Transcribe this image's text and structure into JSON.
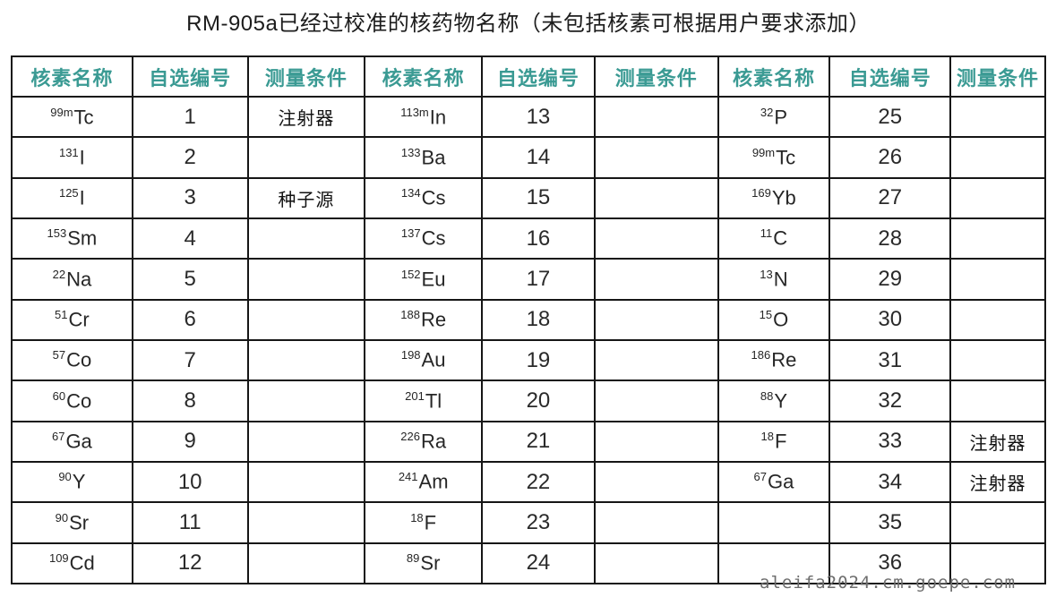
{
  "title": "RM-905a已经过校准的核药物名称（未包括核素可根据用户要求添加）",
  "watermark": "aleifa2024.cm.goepe.com",
  "colors": {
    "header_text": "#3a9a93",
    "border": "#161616",
    "body_text": "#262626",
    "watermark_text": "#6e6e6e",
    "background": "#ffffff"
  },
  "table": {
    "headers": [
      "核素名称",
      "自选编号",
      "测量条件",
      "核素名称",
      "自选编号",
      "测量条件",
      "核素名称",
      "自选编号",
      "测量条件"
    ],
    "rows": [
      [
        {
          "mass": "99m",
          "el": "Tc"
        },
        "1",
        "注射器",
        {
          "mass": "113m",
          "el": "In"
        },
        "13",
        "",
        {
          "mass": "32",
          "el": "P"
        },
        "25",
        ""
      ],
      [
        {
          "mass": "131",
          "el": "I"
        },
        "2",
        "",
        {
          "mass": "133",
          "el": "Ba"
        },
        "14",
        "",
        {
          "mass": "99m",
          "el": "Tc"
        },
        "26",
        ""
      ],
      [
        {
          "mass": "125",
          "el": "I"
        },
        "3",
        "种子源",
        {
          "mass": "134",
          "el": "Cs"
        },
        "15",
        "",
        {
          "mass": "169",
          "el": "Yb"
        },
        "27",
        ""
      ],
      [
        {
          "mass": "153",
          "el": "Sm"
        },
        "4",
        "",
        {
          "mass": "137",
          "el": "Cs"
        },
        "16",
        "",
        {
          "mass": "11",
          "el": "C"
        },
        "28",
        ""
      ],
      [
        {
          "mass": "22",
          "el": "Na"
        },
        "5",
        "",
        {
          "mass": "152",
          "el": "Eu"
        },
        "17",
        "",
        {
          "mass": "13",
          "el": "N"
        },
        "29",
        ""
      ],
      [
        {
          "mass": "51",
          "el": "Cr"
        },
        "6",
        "",
        {
          "mass": "188",
          "el": "Re"
        },
        "18",
        "",
        {
          "mass": "15",
          "el": "O"
        },
        "30",
        ""
      ],
      [
        {
          "mass": "57",
          "el": "Co"
        },
        "7",
        "",
        {
          "mass": "198",
          "el": "Au"
        },
        "19",
        "",
        {
          "mass": "186",
          "el": "Re"
        },
        "31",
        ""
      ],
      [
        {
          "mass": "60",
          "el": "Co"
        },
        "8",
        "",
        {
          "mass": "201",
          "el": "Tl"
        },
        "20",
        "",
        {
          "mass": "88",
          "el": "Y"
        },
        "32",
        ""
      ],
      [
        {
          "mass": "67",
          "el": "Ga"
        },
        "9",
        "",
        {
          "mass": "226",
          "el": "Ra"
        },
        "21",
        "",
        {
          "mass": "18",
          "el": "F"
        },
        "33",
        "注射器"
      ],
      [
        {
          "mass": "90",
          "el": "Y"
        },
        "10",
        "",
        {
          "mass": "241",
          "el": "Am"
        },
        "22",
        "",
        {
          "mass": "67",
          "el": "Ga"
        },
        "34",
        "注射器"
      ],
      [
        {
          "mass": "90",
          "el": "Sr"
        },
        "11",
        "",
        {
          "mass": "18",
          "el": "F"
        },
        "23",
        "",
        {
          "mass": "",
          "el": ""
        },
        "35",
        ""
      ],
      [
        {
          "mass": "109",
          "el": "Cd"
        },
        "12",
        "",
        {
          "mass": "89",
          "el": "Sr"
        },
        "24",
        "",
        {
          "mass": "",
          "el": ""
        },
        "36",
        ""
      ]
    ]
  }
}
